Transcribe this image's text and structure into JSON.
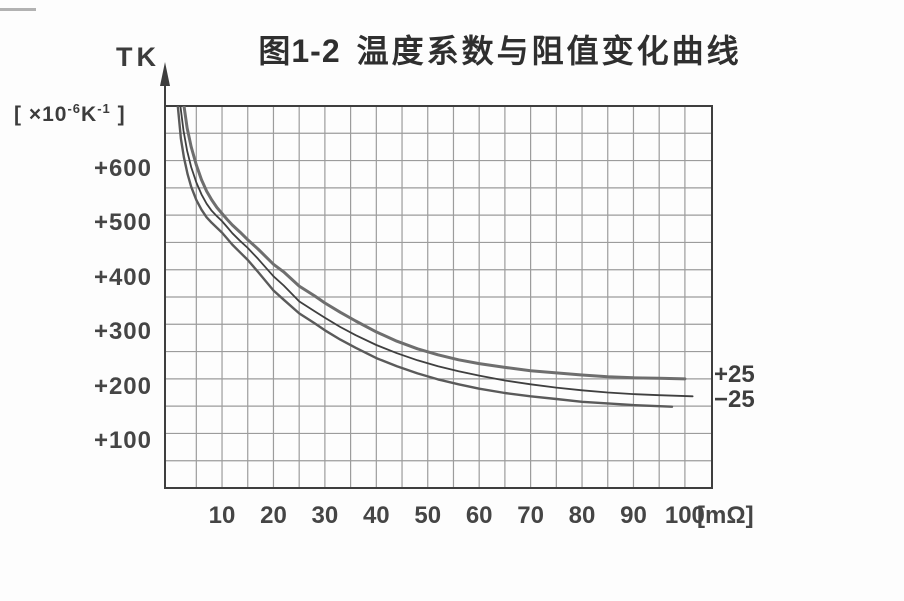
{
  "header": {
    "figure_no": "图1-2",
    "title": "温度系数与阻值变化曲线"
  },
  "y_axis": {
    "name": "TK",
    "unit": {
      "pre": "[ ×10",
      "sup1": "-6",
      "mid": "K",
      "sup2": "-1",
      "post": " ]"
    }
  },
  "x_axis": {
    "unit": "[mΩ]"
  },
  "chart_data": {
    "type": "line",
    "title": "图1-2 温度系数与阻值变化曲线",
    "ylabel": "TK [×10⁻⁶K⁻¹]",
    "xlabel": "",
    "x_unit": "[mΩ]",
    "xlim": [
      0,
      106
    ],
    "ylim": [
      0,
      700
    ],
    "grid": {
      "on": true,
      "x_step": 5,
      "y_step": 50
    },
    "x_ticks": {
      "values": [
        10,
        20,
        30,
        40,
        50,
        60,
        70,
        80,
        90,
        100
      ],
      "labels": [
        "10",
        "20",
        "30",
        "40",
        "50",
        "60",
        "70",
        "80",
        "90",
        "100"
      ]
    },
    "y_ticks": {
      "values": [
        600,
        500,
        400,
        300,
        200,
        100
      ],
      "labels": [
        "+600",
        "+500",
        "+400",
        "+300",
        "+200",
        "+100"
      ]
    },
    "legend_position": "right of curve ends",
    "series": [
      {
        "name": "tk-upper-limit",
        "label": "+25",
        "label_value": 207,
        "color": "#6e6e6e",
        "width": 3,
        "points": [
          [
            2.6,
            700
          ],
          [
            3.2,
            660
          ],
          [
            4,
            625
          ],
          [
            5,
            592
          ],
          [
            6,
            565
          ],
          [
            7,
            544
          ],
          [
            8,
            528
          ],
          [
            9,
            514
          ],
          [
            10,
            503
          ],
          [
            11,
            492
          ],
          [
            12,
            482
          ],
          [
            13.5,
            469
          ],
          [
            15,
            455
          ],
          [
            17,
            438
          ],
          [
            20,
            410
          ],
          [
            22,
            396
          ],
          [
            25,
            370
          ],
          [
            28,
            352
          ],
          [
            30,
            339
          ],
          [
            33,
            322
          ],
          [
            36,
            306
          ],
          [
            40,
            286
          ],
          [
            44,
            269
          ],
          [
            48,
            255
          ],
          [
            52,
            244
          ],
          [
            56,
            235
          ],
          [
            60,
            228
          ],
          [
            65,
            221
          ],
          [
            70,
            215
          ],
          [
            75,
            211
          ],
          [
            80,
            207
          ],
          [
            85,
            204
          ],
          [
            90,
            202
          ],
          [
            95,
            201
          ],
          [
            100,
            200
          ]
        ]
      },
      {
        "name": "tk-nominal",
        "label": null,
        "label_value": null,
        "color": "#3f3f3f",
        "width": 1.8,
        "points": [
          [
            1.9,
            700
          ],
          [
            2.5,
            655
          ],
          [
            3.2,
            618
          ],
          [
            4,
            588
          ],
          [
            5,
            560
          ],
          [
            6,
            538
          ],
          [
            7,
            521
          ],
          [
            8,
            508
          ],
          [
            9,
            498
          ],
          [
            10,
            489
          ],
          [
            11,
            478
          ],
          [
            12,
            467
          ],
          [
            13.5,
            453
          ],
          [
            15,
            440
          ],
          [
            17,
            420
          ],
          [
            20,
            388
          ],
          [
            22,
            371
          ],
          [
            25,
            342
          ],
          [
            28,
            324
          ],
          [
            30,
            312
          ],
          [
            33,
            295
          ],
          [
            36,
            280
          ],
          [
            40,
            262
          ],
          [
            44,
            247
          ],
          [
            48,
            234
          ],
          [
            52,
            223
          ],
          [
            56,
            214
          ],
          [
            60,
            206
          ],
          [
            65,
            197
          ],
          [
            70,
            190
          ],
          [
            75,
            184
          ],
          [
            80,
            179
          ],
          [
            85,
            175
          ],
          [
            90,
            172
          ],
          [
            95,
            170
          ],
          [
            101.5,
            168
          ]
        ]
      },
      {
        "name": "tk-lower-limit",
        "label": "−25",
        "label_value": 161,
        "color": "#5a5a5a",
        "width": 2.4,
        "points": [
          [
            1.4,
            700
          ],
          [
            2,
            640
          ],
          [
            2.6,
            605
          ],
          [
            3.3,
            575
          ],
          [
            4,
            552
          ],
          [
            5,
            528
          ],
          [
            6,
            510
          ],
          [
            7,
            496
          ],
          [
            8,
            486
          ],
          [
            9,
            477
          ],
          [
            10,
            468
          ],
          [
            11,
            457
          ],
          [
            12,
            446
          ],
          [
            13.5,
            432
          ],
          [
            15,
            418
          ],
          [
            17,
            396
          ],
          [
            20,
            362
          ],
          [
            22,
            345
          ],
          [
            25,
            320
          ],
          [
            28,
            302
          ],
          [
            30,
            289
          ],
          [
            33,
            272
          ],
          [
            36,
            257
          ],
          [
            40,
            238
          ],
          [
            44,
            223
          ],
          [
            48,
            210
          ],
          [
            52,
            199
          ],
          [
            56,
            190
          ],
          [
            60,
            182
          ],
          [
            65,
            174
          ],
          [
            70,
            168
          ],
          [
            75,
            163
          ],
          [
            80,
            158
          ],
          [
            85,
            155
          ],
          [
            90,
            152
          ],
          [
            97.5,
            149
          ]
        ]
      }
    ]
  }
}
